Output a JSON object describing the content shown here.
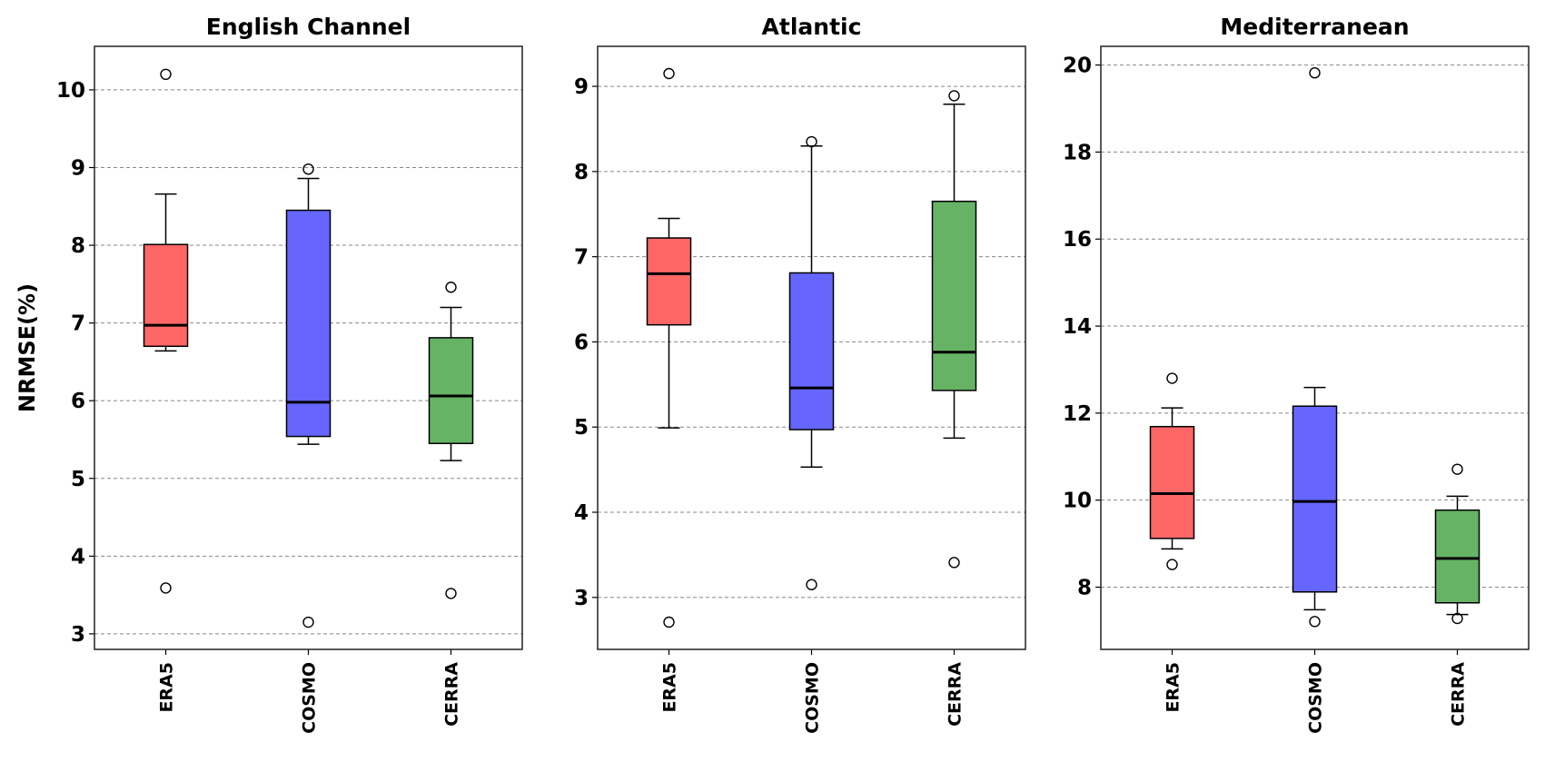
{
  "chart_data": [
    {
      "type": "box",
      "title": "English Channel",
      "ylabel": "NRMSE(%)",
      "ylim": [
        2.8,
        10.56
      ],
      "yticks": [
        3,
        4,
        5,
        6,
        7,
        8,
        9,
        10
      ],
      "grid": "y-dashed",
      "categories": [
        "ERA5",
        "COSMO",
        "CERRA"
      ],
      "colors": [
        "#ff6666",
        "#6666ff",
        "#66b366"
      ],
      "boxes": [
        {
          "whislo": 6.64,
          "q1": 6.7,
          "med": 6.97,
          "q3": 8.01,
          "whishi": 8.66,
          "fliers": [
            10.2,
            3.59
          ]
        },
        {
          "whislo": 5.44,
          "q1": 5.54,
          "med": 5.98,
          "q3": 8.45,
          "whishi": 8.86,
          "fliers": [
            8.98,
            3.15
          ]
        },
        {
          "whislo": 5.23,
          "q1": 5.45,
          "med": 6.06,
          "q3": 6.81,
          "whishi": 7.2,
          "fliers": [
            7.46,
            3.52
          ]
        }
      ]
    },
    {
      "type": "box",
      "title": "Atlantic",
      "ylabel": "",
      "ylim": [
        2.39,
        9.47
      ],
      "yticks": [
        3,
        4,
        5,
        6,
        7,
        8,
        9
      ],
      "grid": "y-dashed",
      "categories": [
        "ERA5",
        "COSMO",
        "CERRA"
      ],
      "colors": [
        "#ff6666",
        "#6666ff",
        "#66b366"
      ],
      "boxes": [
        {
          "whislo": 4.99,
          "q1": 6.2,
          "med": 6.8,
          "q3": 7.22,
          "whishi": 7.45,
          "fliers": [
            9.15,
            2.71
          ]
        },
        {
          "whislo": 4.53,
          "q1": 4.97,
          "med": 5.46,
          "q3": 6.81,
          "whishi": 8.3,
          "fliers": [
            8.35,
            3.15
          ]
        },
        {
          "whislo": 4.87,
          "q1": 5.43,
          "med": 5.88,
          "q3": 7.65,
          "whishi": 8.79,
          "fliers": [
            8.89,
            3.41
          ]
        }
      ]
    },
    {
      "type": "box",
      "title": "Mediterranean",
      "ylabel": "",
      "ylim": [
        6.57,
        20.43
      ],
      "yticks": [
        8,
        10,
        12,
        14,
        16,
        18,
        20
      ],
      "grid": "y-dashed",
      "categories": [
        "ERA5",
        "COSMO",
        "CERRA"
      ],
      "colors": [
        "#ff6666",
        "#6666ff",
        "#66b366"
      ],
      "boxes": [
        {
          "whislo": 8.88,
          "q1": 9.12,
          "med": 10.15,
          "q3": 11.69,
          "whishi": 12.12,
          "fliers": [
            12.8,
            8.52
          ]
        },
        {
          "whislo": 7.48,
          "q1": 7.89,
          "med": 9.97,
          "q3": 12.16,
          "whishi": 12.59,
          "fliers": [
            19.82,
            7.21
          ]
        },
        {
          "whislo": 7.37,
          "q1": 7.64,
          "med": 8.66,
          "q3": 9.77,
          "whishi": 10.09,
          "fliers": [
            10.71,
            7.28
          ]
        }
      ]
    }
  ]
}
